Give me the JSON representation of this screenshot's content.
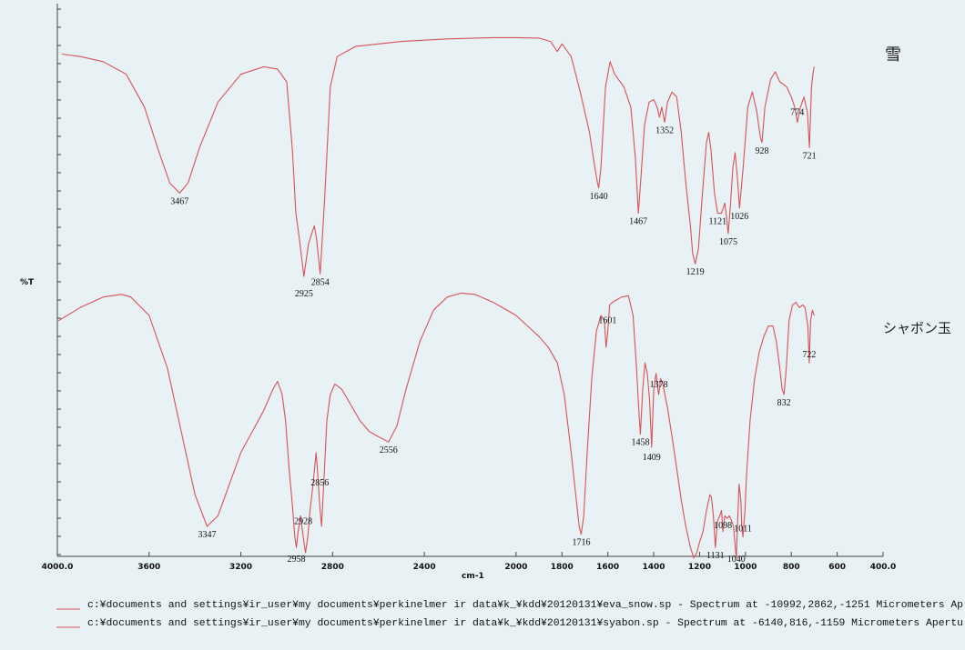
{
  "chart_data": {
    "type": "line",
    "xlabel": "cm-1",
    "ylabel": "%T",
    "xlim": [
      4000,
      400
    ],
    "x_ticks": [
      "4000.0",
      "3600",
      "3200",
      "2800",
      "2400",
      "2000",
      "1800",
      "1600",
      "1400",
      "1200",
      "1000",
      "800",
      "600",
      "400.0"
    ],
    "annotations": [
      "雪",
      "シャボン玉"
    ],
    "series": [
      {
        "color": "#d8525a",
        "band": "top",
        "points": [
          [
            3980,
            0.93
          ],
          [
            3900,
            0.92
          ],
          [
            3800,
            0.9
          ],
          [
            3700,
            0.85
          ],
          [
            3620,
            0.72
          ],
          [
            3560,
            0.55
          ],
          [
            3510,
            0.42
          ],
          [
            3467,
            0.38
          ],
          [
            3430,
            0.42
          ],
          [
            3380,
            0.56
          ],
          [
            3300,
            0.74
          ],
          [
            3200,
            0.85
          ],
          [
            3100,
            0.88
          ],
          [
            3040,
            0.87
          ],
          [
            3000,
            0.82
          ],
          [
            2975,
            0.55
          ],
          [
            2960,
            0.3
          ],
          [
            2945,
            0.2
          ],
          [
            2925,
            0.05
          ],
          [
            2905,
            0.18
          ],
          [
            2880,
            0.25
          ],
          [
            2870,
            0.2
          ],
          [
            2854,
            0.06
          ],
          [
            2835,
            0.35
          ],
          [
            2810,
            0.8
          ],
          [
            2780,
            0.92
          ],
          [
            2700,
            0.96
          ],
          [
            2500,
            0.98
          ],
          [
            2300,
            0.99
          ],
          [
            2100,
            0.995
          ],
          [
            2000,
            0.995
          ],
          [
            1900,
            0.993
          ],
          [
            1850,
            0.98
          ],
          [
            1820,
            0.94
          ],
          [
            1800,
            0.97
          ],
          [
            1760,
            0.92
          ],
          [
            1720,
            0.78
          ],
          [
            1680,
            0.62
          ],
          [
            1660,
            0.5
          ],
          [
            1645,
            0.42
          ],
          [
            1640,
            0.4
          ],
          [
            1630,
            0.48
          ],
          [
            1610,
            0.8
          ],
          [
            1590,
            0.9
          ],
          [
            1570,
            0.85
          ],
          [
            1530,
            0.8
          ],
          [
            1500,
            0.72
          ],
          [
            1480,
            0.52
          ],
          [
            1467,
            0.3
          ],
          [
            1455,
            0.45
          ],
          [
            1440,
            0.65
          ],
          [
            1420,
            0.74
          ],
          [
            1400,
            0.75
          ],
          [
            1385,
            0.72
          ],
          [
            1375,
            0.68
          ],
          [
            1365,
            0.72
          ],
          [
            1352,
            0.66
          ],
          [
            1340,
            0.74
          ],
          [
            1320,
            0.78
          ],
          [
            1300,
            0.76
          ],
          [
            1280,
            0.62
          ],
          [
            1260,
            0.42
          ],
          [
            1240,
            0.25
          ],
          [
            1230,
            0.14
          ],
          [
            1219,
            0.1
          ],
          [
            1205,
            0.16
          ],
          [
            1190,
            0.35
          ],
          [
            1170,
            0.58
          ],
          [
            1160,
            0.62
          ],
          [
            1150,
            0.55
          ],
          [
            1135,
            0.38
          ],
          [
            1121,
            0.3
          ],
          [
            1105,
            0.3
          ],
          [
            1090,
            0.34
          ],
          [
            1082,
            0.28
          ],
          [
            1075,
            0.22
          ],
          [
            1065,
            0.34
          ],
          [
            1055,
            0.48
          ],
          [
            1045,
            0.54
          ],
          [
            1035,
            0.44
          ],
          [
            1026,
            0.32
          ],
          [
            1010,
            0.48
          ],
          [
            990,
            0.72
          ],
          [
            970,
            0.78
          ],
          [
            950,
            0.7
          ],
          [
            935,
            0.6
          ],
          [
            928,
            0.58
          ],
          [
            915,
            0.72
          ],
          [
            890,
            0.83
          ],
          [
            870,
            0.86
          ],
          [
            850,
            0.82
          ],
          [
            820,
            0.8
          ],
          [
            800,
            0.76
          ],
          [
            785,
            0.72
          ],
          [
            774,
            0.66
          ],
          [
            760,
            0.72
          ],
          [
            745,
            0.76
          ],
          [
            730,
            0.7
          ],
          [
            721,
            0.56
          ],
          [
            712,
            0.8
          ],
          [
            705,
            0.86
          ],
          [
            700,
            0.88
          ]
        ]
      },
      {
        "color": "#d8525a",
        "band": "bottom",
        "points": [
          [
            3995,
            0.88
          ],
          [
            3900,
            0.93
          ],
          [
            3800,
            0.97
          ],
          [
            3720,
            0.98
          ],
          [
            3680,
            0.97
          ],
          [
            3600,
            0.9
          ],
          [
            3520,
            0.7
          ],
          [
            3440,
            0.38
          ],
          [
            3400,
            0.22
          ],
          [
            3347,
            0.1
          ],
          [
            3300,
            0.14
          ],
          [
            3250,
            0.26
          ],
          [
            3200,
            0.38
          ],
          [
            3150,
            0.46
          ],
          [
            3100,
            0.54
          ],
          [
            3060,
            0.62
          ],
          [
            3040,
            0.65
          ],
          [
            3020,
            0.6
          ],
          [
            3005,
            0.5
          ],
          [
            2990,
            0.32
          ],
          [
            2975,
            0.18
          ],
          [
            2965,
            0.06
          ],
          [
            2958,
            0.02
          ],
          [
            2950,
            0.08
          ],
          [
            2940,
            0.14
          ],
          [
            2928,
            0.06
          ],
          [
            2918,
            0.0
          ],
          [
            2908,
            0.06
          ],
          [
            2898,
            0.16
          ],
          [
            2885,
            0.26
          ],
          [
            2872,
            0.38
          ],
          [
            2865,
            0.3
          ],
          [
            2856,
            0.18
          ],
          [
            2848,
            0.1
          ],
          [
            2840,
            0.24
          ],
          [
            2825,
            0.5
          ],
          [
            2810,
            0.6
          ],
          [
            2790,
            0.64
          ],
          [
            2760,
            0.62
          ],
          [
            2720,
            0.56
          ],
          [
            2680,
            0.5
          ],
          [
            2640,
            0.46
          ],
          [
            2600,
            0.44
          ],
          [
            2556,
            0.42
          ],
          [
            2520,
            0.48
          ],
          [
            2480,
            0.62
          ],
          [
            2420,
            0.8
          ],
          [
            2360,
            0.92
          ],
          [
            2300,
            0.97
          ],
          [
            2240,
            0.985
          ],
          [
            2180,
            0.98
          ],
          [
            2100,
            0.95
          ],
          [
            2000,
            0.9
          ],
          [
            1950,
            0.86
          ],
          [
            1900,
            0.82
          ],
          [
            1860,
            0.78
          ],
          [
            1820,
            0.72
          ],
          [
            1790,
            0.6
          ],
          [
            1760,
            0.38
          ],
          [
            1740,
            0.22
          ],
          [
            1725,
            0.1
          ],
          [
            1716,
            0.07
          ],
          [
            1705,
            0.14
          ],
          [
            1690,
            0.38
          ],
          [
            1670,
            0.66
          ],
          [
            1650,
            0.84
          ],
          [
            1630,
            0.9
          ],
          [
            1615,
            0.88
          ],
          [
            1608,
            0.78
          ],
          [
            1601,
            0.83
          ],
          [
            1592,
            0.94
          ],
          [
            1580,
            0.95
          ],
          [
            1560,
            0.96
          ],
          [
            1540,
            0.97
          ],
          [
            1510,
            0.975
          ],
          [
            1490,
            0.9
          ],
          [
            1475,
            0.7
          ],
          [
            1465,
            0.54
          ],
          [
            1458,
            0.45
          ],
          [
            1448,
            0.62
          ],
          [
            1438,
            0.72
          ],
          [
            1428,
            0.68
          ],
          [
            1418,
            0.58
          ],
          [
            1409,
            0.4
          ],
          [
            1400,
            0.62
          ],
          [
            1390,
            0.68
          ],
          [
            1382,
            0.62
          ],
          [
            1378,
            0.6
          ],
          [
            1370,
            0.66
          ],
          [
            1360,
            0.64
          ],
          [
            1340,
            0.55
          ],
          [
            1320,
            0.44
          ],
          [
            1300,
            0.32
          ],
          [
            1280,
            0.2
          ],
          [
            1260,
            0.1
          ],
          [
            1240,
            0.02
          ],
          [
            1225,
            -0.02
          ],
          [
            1212,
            0.0
          ],
          [
            1200,
            0.04
          ],
          [
            1185,
            0.08
          ],
          [
            1170,
            0.16
          ],
          [
            1155,
            0.22
          ],
          [
            1148,
            0.21
          ],
          [
            1140,
            0.14
          ],
          [
            1131,
            0.02
          ],
          [
            1122,
            0.12
          ],
          [
            1112,
            0.14
          ],
          [
            1104,
            0.16
          ],
          [
            1098,
            0.08
          ],
          [
            1090,
            0.14
          ],
          [
            1080,
            0.13
          ],
          [
            1070,
            0.14
          ],
          [
            1060,
            0.12
          ],
          [
            1052,
            0.1
          ],
          [
            1046,
            0.04
          ],
          [
            1040,
            -0.02
          ],
          [
            1034,
            0.12
          ],
          [
            1028,
            0.26
          ],
          [
            1020,
            0.2
          ],
          [
            1016,
            0.1
          ],
          [
            1011,
            0.06
          ],
          [
            1002,
            0.16
          ],
          [
            995,
            0.3
          ],
          [
            980,
            0.5
          ],
          [
            960,
            0.66
          ],
          [
            940,
            0.76
          ],
          [
            920,
            0.82
          ],
          [
            900,
            0.86
          ],
          [
            880,
            0.86
          ],
          [
            865,
            0.8
          ],
          [
            850,
            0.7
          ],
          [
            840,
            0.62
          ],
          [
            832,
            0.6
          ],
          [
            822,
            0.7
          ],
          [
            810,
            0.88
          ],
          [
            795,
            0.94
          ],
          [
            780,
            0.95
          ],
          [
            765,
            0.93
          ],
          [
            750,
            0.94
          ],
          [
            740,
            0.93
          ],
          [
            728,
            0.86
          ],
          [
            722,
            0.72
          ],
          [
            716,
            0.88
          ],
          [
            708,
            0.92
          ],
          [
            700,
            0.9
          ]
        ]
      }
    ],
    "peaks": [
      {
        "band": "top",
        "x": 3467,
        "label": "3467"
      },
      {
        "band": "top",
        "x": 2925,
        "label": "2925"
      },
      {
        "band": "top",
        "x": 2854,
        "label": "2854"
      },
      {
        "band": "top",
        "x": 1640,
        "label": "1640"
      },
      {
        "band": "top",
        "x": 1467,
        "label": "1467"
      },
      {
        "band": "top",
        "x": 1352,
        "label": "1352"
      },
      {
        "band": "top",
        "x": 1219,
        "label": "1219"
      },
      {
        "band": "top",
        "x": 1121,
        "label": "1121"
      },
      {
        "band": "top",
        "x": 1075,
        "label": "1075"
      },
      {
        "band": "top",
        "x": 1026,
        "label": "1026"
      },
      {
        "band": "top",
        "x": 928,
        "label": "928"
      },
      {
        "band": "top",
        "x": 774,
        "label": "774"
      },
      {
        "band": "top",
        "x": 721,
        "label": "721"
      },
      {
        "band": "bottom",
        "x": 3347,
        "label": "3347"
      },
      {
        "band": "bottom",
        "x": 2958,
        "label": "2958"
      },
      {
        "band": "bottom",
        "x": 2928,
        "label": "2928"
      },
      {
        "band": "bottom",
        "x": 2856,
        "label": "2856"
      },
      {
        "band": "bottom",
        "x": 2556,
        "label": "2556"
      },
      {
        "band": "bottom",
        "x": 1716,
        "label": "1716"
      },
      {
        "band": "bottom",
        "x": 1601,
        "label": "1601"
      },
      {
        "band": "bottom",
        "x": 1458,
        "label": "1458"
      },
      {
        "band": "bottom",
        "x": 1409,
        "label": "1409"
      },
      {
        "band": "bottom",
        "x": 1378,
        "label": "1378"
      },
      {
        "band": "bottom",
        "x": 1131,
        "label": "1131"
      },
      {
        "band": "bottom",
        "x": 1098,
        "label": "1098"
      },
      {
        "band": "bottom",
        "x": 1040,
        "label": "1040"
      },
      {
        "band": "bottom",
        "x": 1011,
        "label": "1011"
      },
      {
        "band": "bottom",
        "x": 832,
        "label": "832"
      },
      {
        "band": "bottom",
        "x": 722,
        "label": "722"
      }
    ],
    "legend": [
      {
        "text": "c:¥documents and settings¥ir_user¥my documents¥perkinelmer ir data¥k_¥kdd¥20120131¥eva_snow.sp - Spectrum at -10992,2862,-1251 Micrometers  Ap",
        "color": "#d8525a"
      },
      {
        "text": "c:¥documents and settings¥ir_user¥my documents¥perkinelmer ir data¥k_¥kdd¥20120131¥syabon.sp - Spectrum at -6140,816,-1159 Micrometers  Apertu",
        "color": "#d8525a"
      }
    ]
  }
}
